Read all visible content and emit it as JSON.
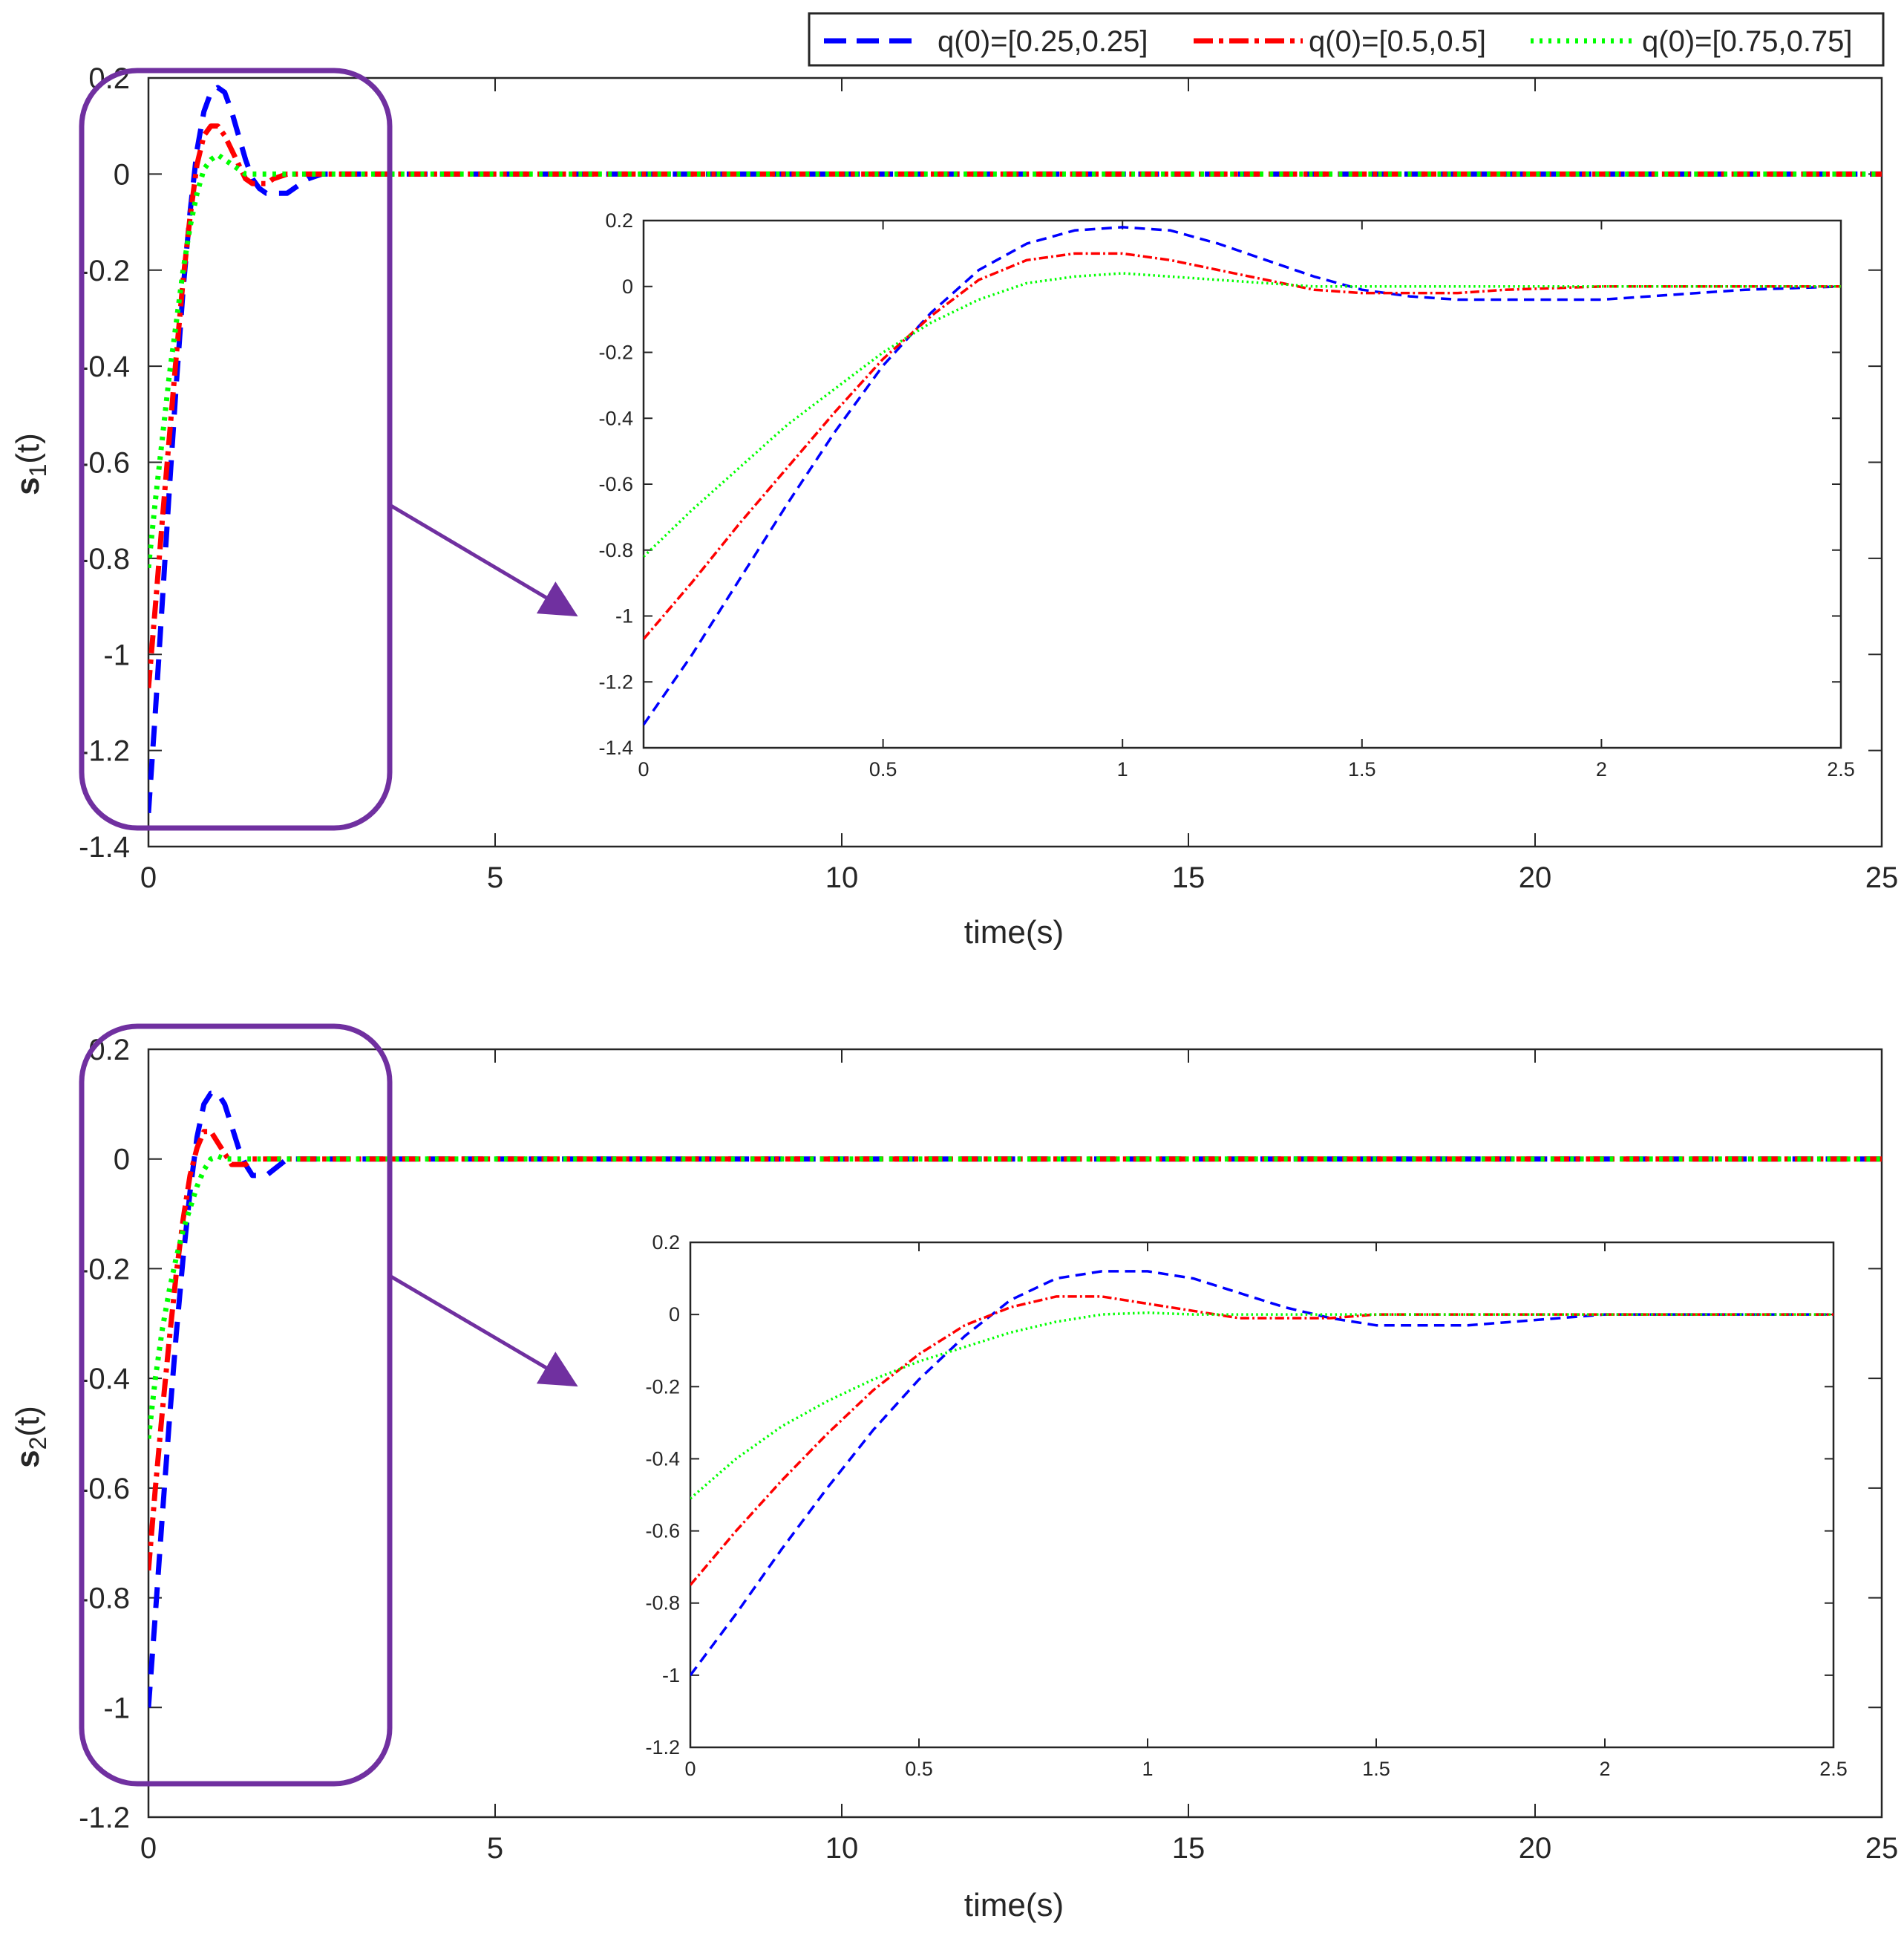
{
  "legend": {
    "entries": [
      {
        "label": "q(0)=[0.25,0.25]",
        "color": "#0000ff",
        "style": "dashed"
      },
      {
        "label": "q(0)=[0.5,0.5]",
        "color": "#ff0000",
        "style": "dashdot"
      },
      {
        "label": "q(0)=[0.75,0.75]",
        "color": "#00ff00",
        "style": "dotted"
      }
    ]
  },
  "chart_data": [
    {
      "type": "line",
      "name": "s1-main",
      "ylabel_base": "s",
      "ylabel_sub": "1",
      "ylabel_suffix": "(t)",
      "xlabel": "time(s)",
      "xlim": [
        0,
        25
      ],
      "ylim": [
        -1.4,
        0.2
      ],
      "xticks": [
        "0",
        "5",
        "10",
        "15",
        "20",
        "25"
      ],
      "yticks": [
        "0.2",
        "0",
        "-0.2",
        "-0.4",
        "-0.6",
        "-0.8",
        "-1",
        "-1.2",
        "-1.4"
      ],
      "series": [
        {
          "name": "q(0)=[0.25,0.25]",
          "x": [
            0,
            0.1,
            0.2,
            0.3,
            0.4,
            0.5,
            0.6,
            0.7,
            0.8,
            0.9,
            1.0,
            1.1,
            1.2,
            1.3,
            1.4,
            1.5,
            1.6,
            1.7,
            1.8,
            1.9,
            2.0,
            2.1,
            2.2,
            2.3,
            2.5,
            25
          ],
          "y": [
            -1.33,
            -1.12,
            -0.89,
            -0.66,
            -0.44,
            -0.24,
            -0.08,
            0.05,
            0.13,
            0.17,
            0.18,
            0.17,
            0.13,
            0.08,
            0.03,
            -0.01,
            -0.03,
            -0.04,
            -0.04,
            -0.04,
            -0.04,
            -0.03,
            -0.02,
            -0.01,
            0,
            0
          ]
        },
        {
          "name": "q(0)=[0.5,0.5]",
          "x": [
            0,
            0.1,
            0.2,
            0.3,
            0.4,
            0.5,
            0.6,
            0.7,
            0.8,
            0.9,
            1.0,
            1.1,
            1.2,
            1.3,
            1.4,
            1.5,
            1.6,
            1.7,
            1.8,
            1.9,
            2.0,
            2.2,
            25
          ],
          "y": [
            -1.07,
            -0.9,
            -0.72,
            -0.55,
            -0.38,
            -0.22,
            -0.09,
            0.02,
            0.08,
            0.1,
            0.1,
            0.08,
            0.05,
            0.02,
            -0.01,
            -0.02,
            -0.02,
            -0.02,
            -0.01,
            -0.005,
            0,
            0,
            0
          ]
        },
        {
          "name": "q(0)=[0.75,0.75]",
          "x": [
            0,
            0.1,
            0.2,
            0.3,
            0.4,
            0.5,
            0.6,
            0.7,
            0.8,
            0.9,
            1.0,
            1.1,
            1.2,
            1.3,
            1.4,
            1.5,
            1.6,
            25
          ],
          "y": [
            -0.82,
            -0.68,
            -0.55,
            -0.42,
            -0.31,
            -0.2,
            -0.11,
            -0.04,
            0.01,
            0.03,
            0.04,
            0.03,
            0.02,
            0.01,
            0,
            0,
            0,
            0
          ]
        }
      ]
    },
    {
      "type": "line",
      "name": "s1-inset",
      "xlim": [
        0,
        2.5
      ],
      "ylim": [
        -1.4,
        0.2
      ],
      "xticks": [
        "0",
        "0.5",
        "1",
        "1.5",
        "2",
        "2.5"
      ],
      "yticks": [
        "0.2",
        "0",
        "-0.2",
        "-0.4",
        "-0.6",
        "-0.8",
        "-1",
        "-1.2",
        "-1.4"
      ],
      "series_ref": "s1-main"
    },
    {
      "type": "line",
      "name": "s2-main",
      "ylabel_base": "s",
      "ylabel_sub": "2",
      "ylabel_suffix": "(t)",
      "xlabel": "time(s)",
      "xlim": [
        0,
        25
      ],
      "ylim": [
        -1.2,
        0.2
      ],
      "xticks": [
        "0",
        "5",
        "10",
        "15",
        "20",
        "25"
      ],
      "yticks": [
        "0.2",
        "0",
        "-0.2",
        "-0.4",
        "-0.6",
        "-0.8",
        "-1",
        "-1.2"
      ],
      "series": [
        {
          "name": "q(0)=[0.25,0.25]",
          "x": [
            0,
            0.1,
            0.2,
            0.3,
            0.4,
            0.5,
            0.6,
            0.7,
            0.8,
            0.9,
            1.0,
            1.1,
            1.2,
            1.3,
            1.4,
            1.5,
            1.6,
            1.7,
            1.8,
            1.9,
            2.0,
            25
          ],
          "y": [
            -1.0,
            -0.83,
            -0.65,
            -0.48,
            -0.32,
            -0.18,
            -0.06,
            0.04,
            0.1,
            0.12,
            0.12,
            0.1,
            0.06,
            0.02,
            -0.01,
            -0.03,
            -0.03,
            -0.03,
            -0.02,
            -0.01,
            0,
            0
          ]
        },
        {
          "name": "q(0)=[0.5,0.5]",
          "x": [
            0,
            0.1,
            0.2,
            0.3,
            0.4,
            0.5,
            0.6,
            0.7,
            0.8,
            0.9,
            1.0,
            1.1,
            1.2,
            1.3,
            1.4,
            1.5,
            1.6,
            25
          ],
          "y": [
            -0.75,
            -0.6,
            -0.46,
            -0.33,
            -0.21,
            -0.11,
            -0.03,
            0.02,
            0.05,
            0.05,
            0.03,
            0.01,
            -0.01,
            -0.01,
            -0.01,
            0,
            0,
            0
          ]
        },
        {
          "name": "q(0)=[0.75,0.75]",
          "x": [
            0,
            0.1,
            0.2,
            0.3,
            0.4,
            0.5,
            0.6,
            0.7,
            0.8,
            0.9,
            1.0,
            1.1,
            1.2,
            1.3,
            25
          ],
          "y": [
            -0.51,
            -0.4,
            -0.31,
            -0.24,
            -0.18,
            -0.13,
            -0.09,
            -0.05,
            -0.02,
            0,
            0.005,
            0,
            0,
            0,
            0
          ]
        }
      ]
    },
    {
      "type": "line",
      "name": "s2-inset",
      "xlim": [
        0,
        2.5
      ],
      "ylim": [
        -1.2,
        0.2
      ],
      "xticks": [
        "0",
        "0.5",
        "1",
        "1.5",
        "2",
        "2.5"
      ],
      "yticks": [
        "0.2",
        "0",
        "-0.2",
        "-0.4",
        "-0.6",
        "-0.8",
        "-1",
        "-1.2"
      ],
      "series_ref": "s2-main"
    }
  ],
  "colors": {
    "annotation": "#7030a0",
    "axes": "#262626"
  }
}
